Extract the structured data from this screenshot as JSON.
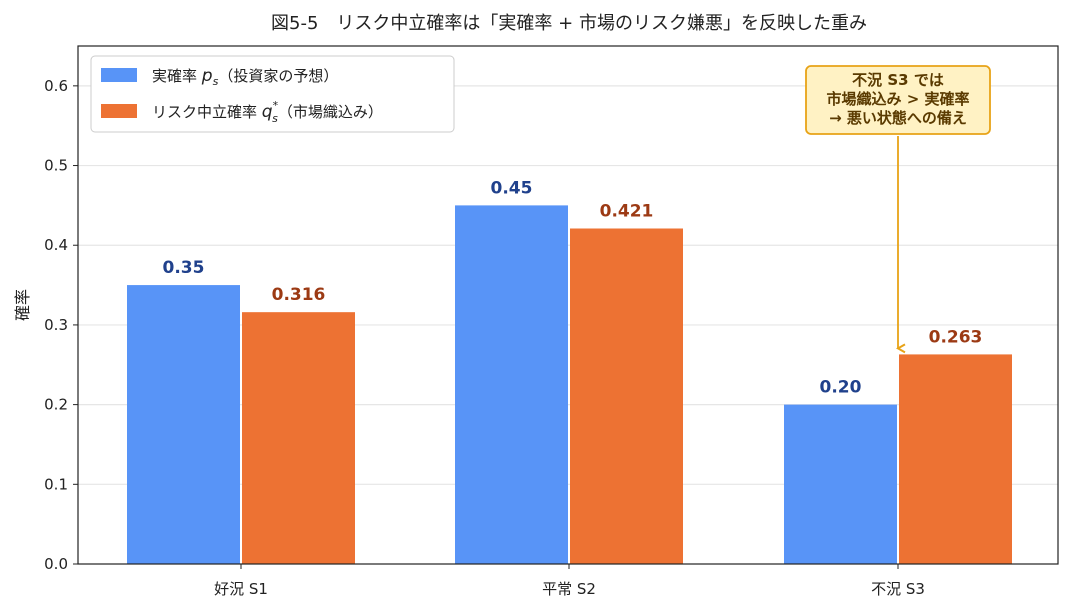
{
  "chart_data": {
    "type": "bar",
    "title": "図5-5　リスク中立確率は「実確率 + 市場のリスク嫌悪」を反映した重み",
    "xlabel": "",
    "ylabel": "確率",
    "ylim": [
      0,
      0.65
    ],
    "yticks": [
      "0.0",
      "0.1",
      "0.2",
      "0.3",
      "0.4",
      "0.5",
      "0.6"
    ],
    "grid": true,
    "legend_position": "top-left",
    "categories": [
      "好況 S1",
      "平常 S2",
      "不況 S3"
    ],
    "series": [
      {
        "name": "実確率 p_s（投資家の予想）",
        "legend_prefix": "実確率 ",
        "legend_symbol": "p",
        "legend_sub": "s",
        "legend_sup": "",
        "legend_suffix": "（投資家の予想）",
        "values": [
          0.35,
          0.45,
          0.2
        ],
        "labels": [
          "0.35",
          "0.45",
          "0.20"
        ],
        "color": "#5894f7",
        "label_color": "#20418c"
      },
      {
        "name": "リスク中立確率 q_s^*（市場織込み）",
        "legend_prefix": "リスク中立確率 ",
        "legend_symbol": "q",
        "legend_sub": "s",
        "legend_sup": "*",
        "legend_suffix": "（市場織込み）",
        "values": [
          0.316,
          0.421,
          0.263
        ],
        "labels": [
          "0.316",
          "0.421",
          "0.263"
        ],
        "color": "#ed7233",
        "label_color": "#9c3a14"
      }
    ],
    "annotation": {
      "lines": [
        "不況 S3 では",
        "市場織込み > 実確率",
        "→ 悪い状態への備え"
      ],
      "category_index": 2,
      "series_index": 1,
      "arrow_target_value": 0.263,
      "box_color": "#fff2c4",
      "border_color": "#e8a317"
    }
  }
}
